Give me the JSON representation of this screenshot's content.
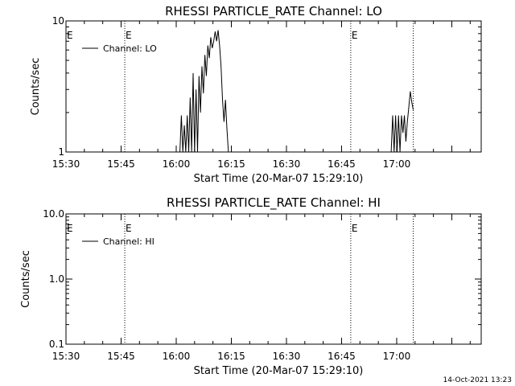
{
  "footer_timestamp": "14-Oct-2021 13:23",
  "chart_data": [
    {
      "type": "line",
      "title": "RHESSI PARTICLE_RATE Channel: LO",
      "xlabel": "Start Time (20-Mar-07 15:29:10)",
      "ylabel": "Counts/sec",
      "x_unit": "minutes after 15:30",
      "xlim": [
        0,
        113
      ],
      "x_ticks": [
        {
          "x": 0,
          "label": "15:30"
        },
        {
          "x": 15,
          "label": "15:45"
        },
        {
          "x": 30,
          "label": "16:00"
        },
        {
          "x": 45,
          "label": "16:15"
        },
        {
          "x": 60,
          "label": "16:30"
        },
        {
          "x": 75,
          "label": "16:45"
        },
        {
          "x": 90,
          "label": "17:00"
        }
      ],
      "y_scale": "log",
      "ylim": [
        1,
        10
      ],
      "y_ticks": [
        {
          "y": 1,
          "label": "1"
        },
        {
          "y": 10,
          "label": "10"
        }
      ],
      "legend": {
        "label": "Channel: LO",
        "position": "top-left"
      },
      "vlines": [
        {
          "x": 16,
          "label": "E"
        },
        {
          "x": 77.5,
          "label": "E"
        },
        {
          "x": 94.5,
          "label": ""
        }
      ],
      "series": [
        {
          "name": "Channel: LO",
          "x": [
            31.0,
            31.4,
            31.8,
            32.2,
            32.6,
            33.0,
            33.4,
            33.8,
            34.2,
            34.6,
            35.0,
            35.4,
            35.8,
            36.2,
            36.6,
            37.0,
            37.4,
            37.8,
            38.2,
            38.6,
            39.0,
            39.4,
            39.8,
            40.2,
            40.6,
            41.0,
            41.4,
            41.8,
            42.2,
            42.6,
            43.0,
            43.4,
            43.8,
            44.2
          ],
          "y": [
            1,
            1.9,
            1,
            1.6,
            1,
            1.9,
            1,
            2.6,
            1,
            4.0,
            1,
            3.0,
            1,
            3.8,
            2.0,
            4.5,
            2.8,
            5.5,
            3.8,
            6.5,
            5.2,
            7.5,
            6.2,
            7.0,
            8.3,
            7.0,
            8.5,
            6.5,
            4.5,
            2.5,
            1.7,
            2.5,
            1.5,
            1
          ]
        },
        {
          "name": "Channel: LO",
          "x": [
            88.5,
            88.9,
            89.3,
            89.7,
            90.1,
            90.5,
            90.9,
            91.3,
            91.7,
            92.1,
            92.5,
            92.9,
            93.3,
            93.7,
            94.1,
            94.5
          ],
          "y": [
            1,
            1.9,
            1,
            1.9,
            1,
            1.9,
            1,
            1.9,
            1.4,
            1.9,
            1.2,
            1.7,
            2.2,
            2.9,
            2.4,
            2.1
          ]
        }
      ]
    },
    {
      "type": "line",
      "title": "RHESSI PARTICLE_RATE Channel: HI",
      "xlabel": "Start Time (20-Mar-07 15:29:10)",
      "ylabel": "Counts/sec",
      "x_unit": "minutes after 15:30",
      "xlim": [
        0,
        113
      ],
      "x_ticks": [
        {
          "x": 0,
          "label": "15:30"
        },
        {
          "x": 15,
          "label": "15:45"
        },
        {
          "x": 30,
          "label": "16:00"
        },
        {
          "x": 45,
          "label": "16:15"
        },
        {
          "x": 60,
          "label": "16:30"
        },
        {
          "x": 75,
          "label": "16:45"
        },
        {
          "x": 90,
          "label": "17:00"
        }
      ],
      "y_scale": "log",
      "ylim": [
        0.1,
        10
      ],
      "y_ticks": [
        {
          "y": 0.1,
          "label": "0.1"
        },
        {
          "y": 1,
          "label": "1.0"
        },
        {
          "y": 10,
          "label": "10.0"
        }
      ],
      "legend": {
        "label": "Channel: HI",
        "position": "top-left"
      },
      "vlines": [
        {
          "x": 16,
          "label": "E"
        },
        {
          "x": 77.5,
          "label": "E"
        },
        {
          "x": 94.5,
          "label": ""
        }
      ],
      "series": [
        {
          "name": "Channel: HI",
          "x": [],
          "y": []
        }
      ]
    }
  ]
}
